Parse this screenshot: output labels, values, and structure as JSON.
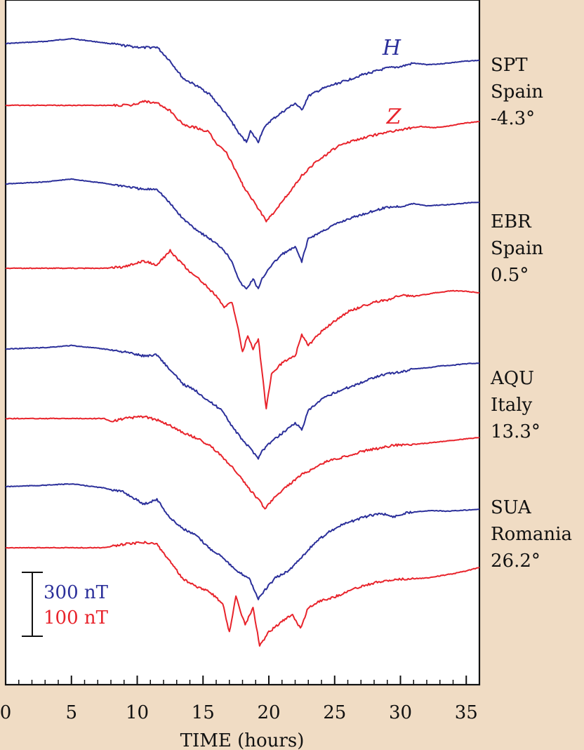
{
  "chart_data": {
    "type": "line",
    "xlabel": "TIME (hours)",
    "xlim": [
      0,
      36
    ],
    "xticks": [
      0,
      5,
      10,
      15,
      20,
      25,
      30,
      35
    ],
    "colors": {
      "H": "#2b2f9a",
      "Z": "#e8232b"
    },
    "component_labels": {
      "H": "H",
      "Z": "Z"
    },
    "scale_bar": {
      "H": "300 nT",
      "Z": "100 nT"
    },
    "stations": [
      {
        "code": "SPT",
        "country": "Spain",
        "lat": "-4.3°",
        "H": [
          [
            0,
            0
          ],
          [
            3,
            3
          ],
          [
            5,
            7
          ],
          [
            7.5,
            1
          ],
          [
            9,
            -3
          ],
          [
            10.5,
            -6
          ],
          [
            11.5,
            -5
          ],
          [
            12.5,
            -25
          ],
          [
            13.5,
            -50
          ],
          [
            14.5,
            -60
          ],
          [
            15.5,
            -72
          ],
          [
            16.5,
            -95
          ],
          [
            17.2,
            -112
          ],
          [
            17.8,
            -130
          ],
          [
            18.3,
            -140
          ],
          [
            18.6,
            -125
          ],
          [
            19.2,
            -140
          ],
          [
            19.5,
            -125
          ],
          [
            20,
            -112
          ],
          [
            21,
            -98
          ],
          [
            22,
            -85
          ],
          [
            22.5,
            -95
          ],
          [
            23,
            -75
          ],
          [
            24,
            -65
          ],
          [
            25,
            -58
          ],
          [
            26,
            -52
          ],
          [
            27,
            -45
          ],
          [
            28,
            -40
          ],
          [
            29,
            -35
          ],
          [
            30,
            -33
          ],
          [
            31,
            -28
          ],
          [
            32,
            -30
          ],
          [
            33,
            -29
          ],
          [
            34,
            -27
          ],
          [
            35,
            -25
          ],
          [
            36,
            -24
          ]
        ],
        "Z": [
          [
            0,
            0
          ],
          [
            5,
            0
          ],
          [
            8,
            0
          ],
          [
            9.5,
            0
          ],
          [
            10.5,
            6
          ],
          [
            11.5,
            3
          ],
          [
            12.5,
            -8
          ],
          [
            13.5,
            -28
          ],
          [
            14.5,
            -32
          ],
          [
            15.5,
            -38
          ],
          [
            16,
            -55
          ],
          [
            16.7,
            -65
          ],
          [
            17.2,
            -82
          ],
          [
            17.8,
            -105
          ],
          [
            18.2,
            -120
          ],
          [
            18.8,
            -135
          ],
          [
            19.3,
            -150
          ],
          [
            19.8,
            -165
          ],
          [
            20.5,
            -150
          ],
          [
            21.5,
            -125
          ],
          [
            22.5,
            -100
          ],
          [
            23.5,
            -82
          ],
          [
            24.5,
            -68
          ],
          [
            25.5,
            -55
          ],
          [
            26.5,
            -50
          ],
          [
            27.5,
            -45
          ],
          [
            28.5,
            -40
          ],
          [
            29.5,
            -37
          ],
          [
            30.5,
            -33
          ],
          [
            31.5,
            -30
          ],
          [
            32.5,
            -32
          ],
          [
            33.5,
            -30
          ],
          [
            35,
            -25
          ],
          [
            36,
            -23
          ]
        ]
      },
      {
        "code": "EBR",
        "country": "Spain",
        "lat": "0.5°",
        "H": [
          [
            0,
            0
          ],
          [
            3,
            3
          ],
          [
            5,
            7
          ],
          [
            7.5,
            1
          ],
          [
            9,
            -3
          ],
          [
            10.5,
            -8
          ],
          [
            11.5,
            -7
          ],
          [
            12.5,
            -28
          ],
          [
            13.5,
            -50
          ],
          [
            14.5,
            -65
          ],
          [
            15.5,
            -78
          ],
          [
            16.5,
            -92
          ],
          [
            17.2,
            -110
          ],
          [
            17.8,
            -140
          ],
          [
            18.3,
            -150
          ],
          [
            18.8,
            -135
          ],
          [
            19.2,
            -150
          ],
          [
            19.5,
            -135
          ],
          [
            20,
            -120
          ],
          [
            21,
            -100
          ],
          [
            22,
            -90
          ],
          [
            22.5,
            -110
          ],
          [
            23,
            -78
          ],
          [
            24,
            -68
          ],
          [
            25,
            -58
          ],
          [
            26,
            -50
          ],
          [
            27,
            -44
          ],
          [
            28,
            -38
          ],
          [
            29,
            -33
          ],
          [
            30,
            -32
          ],
          [
            31,
            -28
          ],
          [
            32,
            -31
          ],
          [
            33,
            -30
          ],
          [
            34,
            -29
          ],
          [
            35,
            -27
          ],
          [
            36,
            -26
          ]
        ],
        "Z": [
          [
            0,
            0
          ],
          [
            5,
            0
          ],
          [
            7.5,
            0
          ],
          [
            9,
            2
          ],
          [
            10.5,
            10
          ],
          [
            11.5,
            5
          ],
          [
            12.5,
            25
          ],
          [
            13.2,
            10
          ],
          [
            14,
            -5
          ],
          [
            15,
            -20
          ],
          [
            16,
            -40
          ],
          [
            16.6,
            -55
          ],
          [
            17.2,
            -48
          ],
          [
            17.6,
            -80
          ],
          [
            18,
            -120
          ],
          [
            18.4,
            -95
          ],
          [
            18.8,
            -115
          ],
          [
            19.2,
            -100
          ],
          [
            19.5,
            -150
          ],
          [
            19.8,
            -200
          ],
          [
            20.2,
            -150
          ],
          [
            21,
            -135
          ],
          [
            22,
            -125
          ],
          [
            22.5,
            -95
          ],
          [
            23,
            -110
          ],
          [
            24,
            -90
          ],
          [
            25,
            -75
          ],
          [
            26,
            -62
          ],
          [
            27,
            -55
          ],
          [
            28,
            -48
          ],
          [
            29,
            -45
          ],
          [
            30,
            -38
          ],
          [
            31,
            -40
          ],
          [
            32,
            -37
          ],
          [
            33,
            -34
          ],
          [
            34,
            -32
          ],
          [
            35,
            -33
          ],
          [
            36,
            -35
          ]
        ]
      },
      {
        "code": "AQU",
        "country": "Italy",
        "lat": "13.3°",
        "H": [
          [
            0,
            0
          ],
          [
            3,
            2
          ],
          [
            5,
            5
          ],
          [
            7.5,
            0
          ],
          [
            9,
            -4
          ],
          [
            10.5,
            -10
          ],
          [
            11.5,
            -8
          ],
          [
            12.5,
            -30
          ],
          [
            13.5,
            -50
          ],
          [
            14.5,
            -60
          ],
          [
            15.5,
            -75
          ],
          [
            16.5,
            -88
          ],
          [
            17.2,
            -110
          ],
          [
            17.8,
            -125
          ],
          [
            18.5,
            -140
          ],
          [
            19.2,
            -155
          ],
          [
            19.5,
            -145
          ],
          [
            20,
            -135
          ],
          [
            21,
            -120
          ],
          [
            22,
            -105
          ],
          [
            22.5,
            -115
          ],
          [
            23,
            -88
          ],
          [
            24,
            -72
          ],
          [
            25,
            -62
          ],
          [
            26,
            -55
          ],
          [
            27,
            -48
          ],
          [
            28,
            -40
          ],
          [
            29,
            -35
          ],
          [
            30,
            -33
          ],
          [
            31,
            -28
          ],
          [
            32,
            -27
          ],
          [
            33,
            -24
          ],
          [
            34,
            -23
          ],
          [
            35,
            -21
          ],
          [
            36,
            -20
          ]
        ],
        "Z": [
          [
            0,
            0
          ],
          [
            5,
            0
          ],
          [
            7.5,
            0
          ],
          [
            8,
            -4
          ],
          [
            9,
            0
          ],
          [
            10.5,
            3
          ],
          [
            11.5,
            -2
          ],
          [
            12.5,
            -10
          ],
          [
            13.5,
            -20
          ],
          [
            14.5,
            -28
          ],
          [
            15.5,
            -38
          ],
          [
            16.5,
            -55
          ],
          [
            17.5,
            -75
          ],
          [
            18.5,
            -100
          ],
          [
            19.2,
            -115
          ],
          [
            19.7,
            -128
          ],
          [
            20.5,
            -110
          ],
          [
            21.5,
            -95
          ],
          [
            22.5,
            -80
          ],
          [
            23.5,
            -70
          ],
          [
            24.5,
            -60
          ],
          [
            25.5,
            -56
          ],
          [
            26.5,
            -50
          ],
          [
            27.5,
            -45
          ],
          [
            28.5,
            -42
          ],
          [
            29.5,
            -38
          ],
          [
            30.5,
            -37
          ],
          [
            31.5,
            -36
          ],
          [
            32.5,
            -34
          ],
          [
            33.5,
            -32
          ],
          [
            34.5,
            -30
          ],
          [
            36,
            -27
          ]
        ]
      },
      {
        "code": "SUA",
        "country": "Romania",
        "lat": "26.2°",
        "H": [
          [
            0,
            0
          ],
          [
            3,
            2
          ],
          [
            5,
            4
          ],
          [
            7.5,
            -2
          ],
          [
            9,
            -8
          ],
          [
            10.5,
            -25
          ],
          [
            11.5,
            -18
          ],
          [
            12.5,
            -45
          ],
          [
            13.5,
            -60
          ],
          [
            14.5,
            -70
          ],
          [
            15.5,
            -88
          ],
          [
            16.5,
            -100
          ],
          [
            17.5,
            -120
          ],
          [
            18.5,
            -130
          ],
          [
            19.2,
            -160
          ],
          [
            19.8,
            -145
          ],
          [
            20.5,
            -130
          ],
          [
            21.5,
            -120
          ],
          [
            22.5,
            -100
          ],
          [
            23.5,
            -80
          ],
          [
            24.5,
            -65
          ],
          [
            25.5,
            -55
          ],
          [
            26.5,
            -48
          ],
          [
            27.5,
            -42
          ],
          [
            28.5,
            -38
          ],
          [
            29.5,
            -43
          ],
          [
            30.5,
            -37
          ],
          [
            31.5,
            -35
          ],
          [
            32.5,
            -34
          ],
          [
            33.5,
            -35
          ],
          [
            34.5,
            -34
          ],
          [
            36,
            -32
          ]
        ],
        "Z": [
          [
            0,
            0
          ],
          [
            5,
            0
          ],
          [
            7.5,
            0
          ],
          [
            9,
            5
          ],
          [
            10.5,
            8
          ],
          [
            11.5,
            5
          ],
          [
            12.5,
            -20
          ],
          [
            13.5,
            -45
          ],
          [
            14.5,
            -55
          ],
          [
            15.5,
            -62
          ],
          [
            16.5,
            -80
          ],
          [
            17,
            -120
          ],
          [
            17.5,
            -70
          ],
          [
            18.2,
            -110
          ],
          [
            18.8,
            -85
          ],
          [
            19.3,
            -140
          ],
          [
            20,
            -120
          ],
          [
            21,
            -105
          ],
          [
            21.8,
            -95
          ],
          [
            22.4,
            -115
          ],
          [
            23,
            -85
          ],
          [
            24,
            -75
          ],
          [
            25,
            -70
          ],
          [
            26,
            -62
          ],
          [
            27,
            -55
          ],
          [
            28,
            -50
          ],
          [
            29,
            -47
          ],
          [
            30,
            -45
          ],
          [
            31,
            -44
          ],
          [
            32,
            -43
          ],
          [
            33,
            -40
          ],
          [
            34,
            -37
          ],
          [
            35,
            -33
          ],
          [
            36,
            -28
          ]
        ]
      }
    ]
  }
}
